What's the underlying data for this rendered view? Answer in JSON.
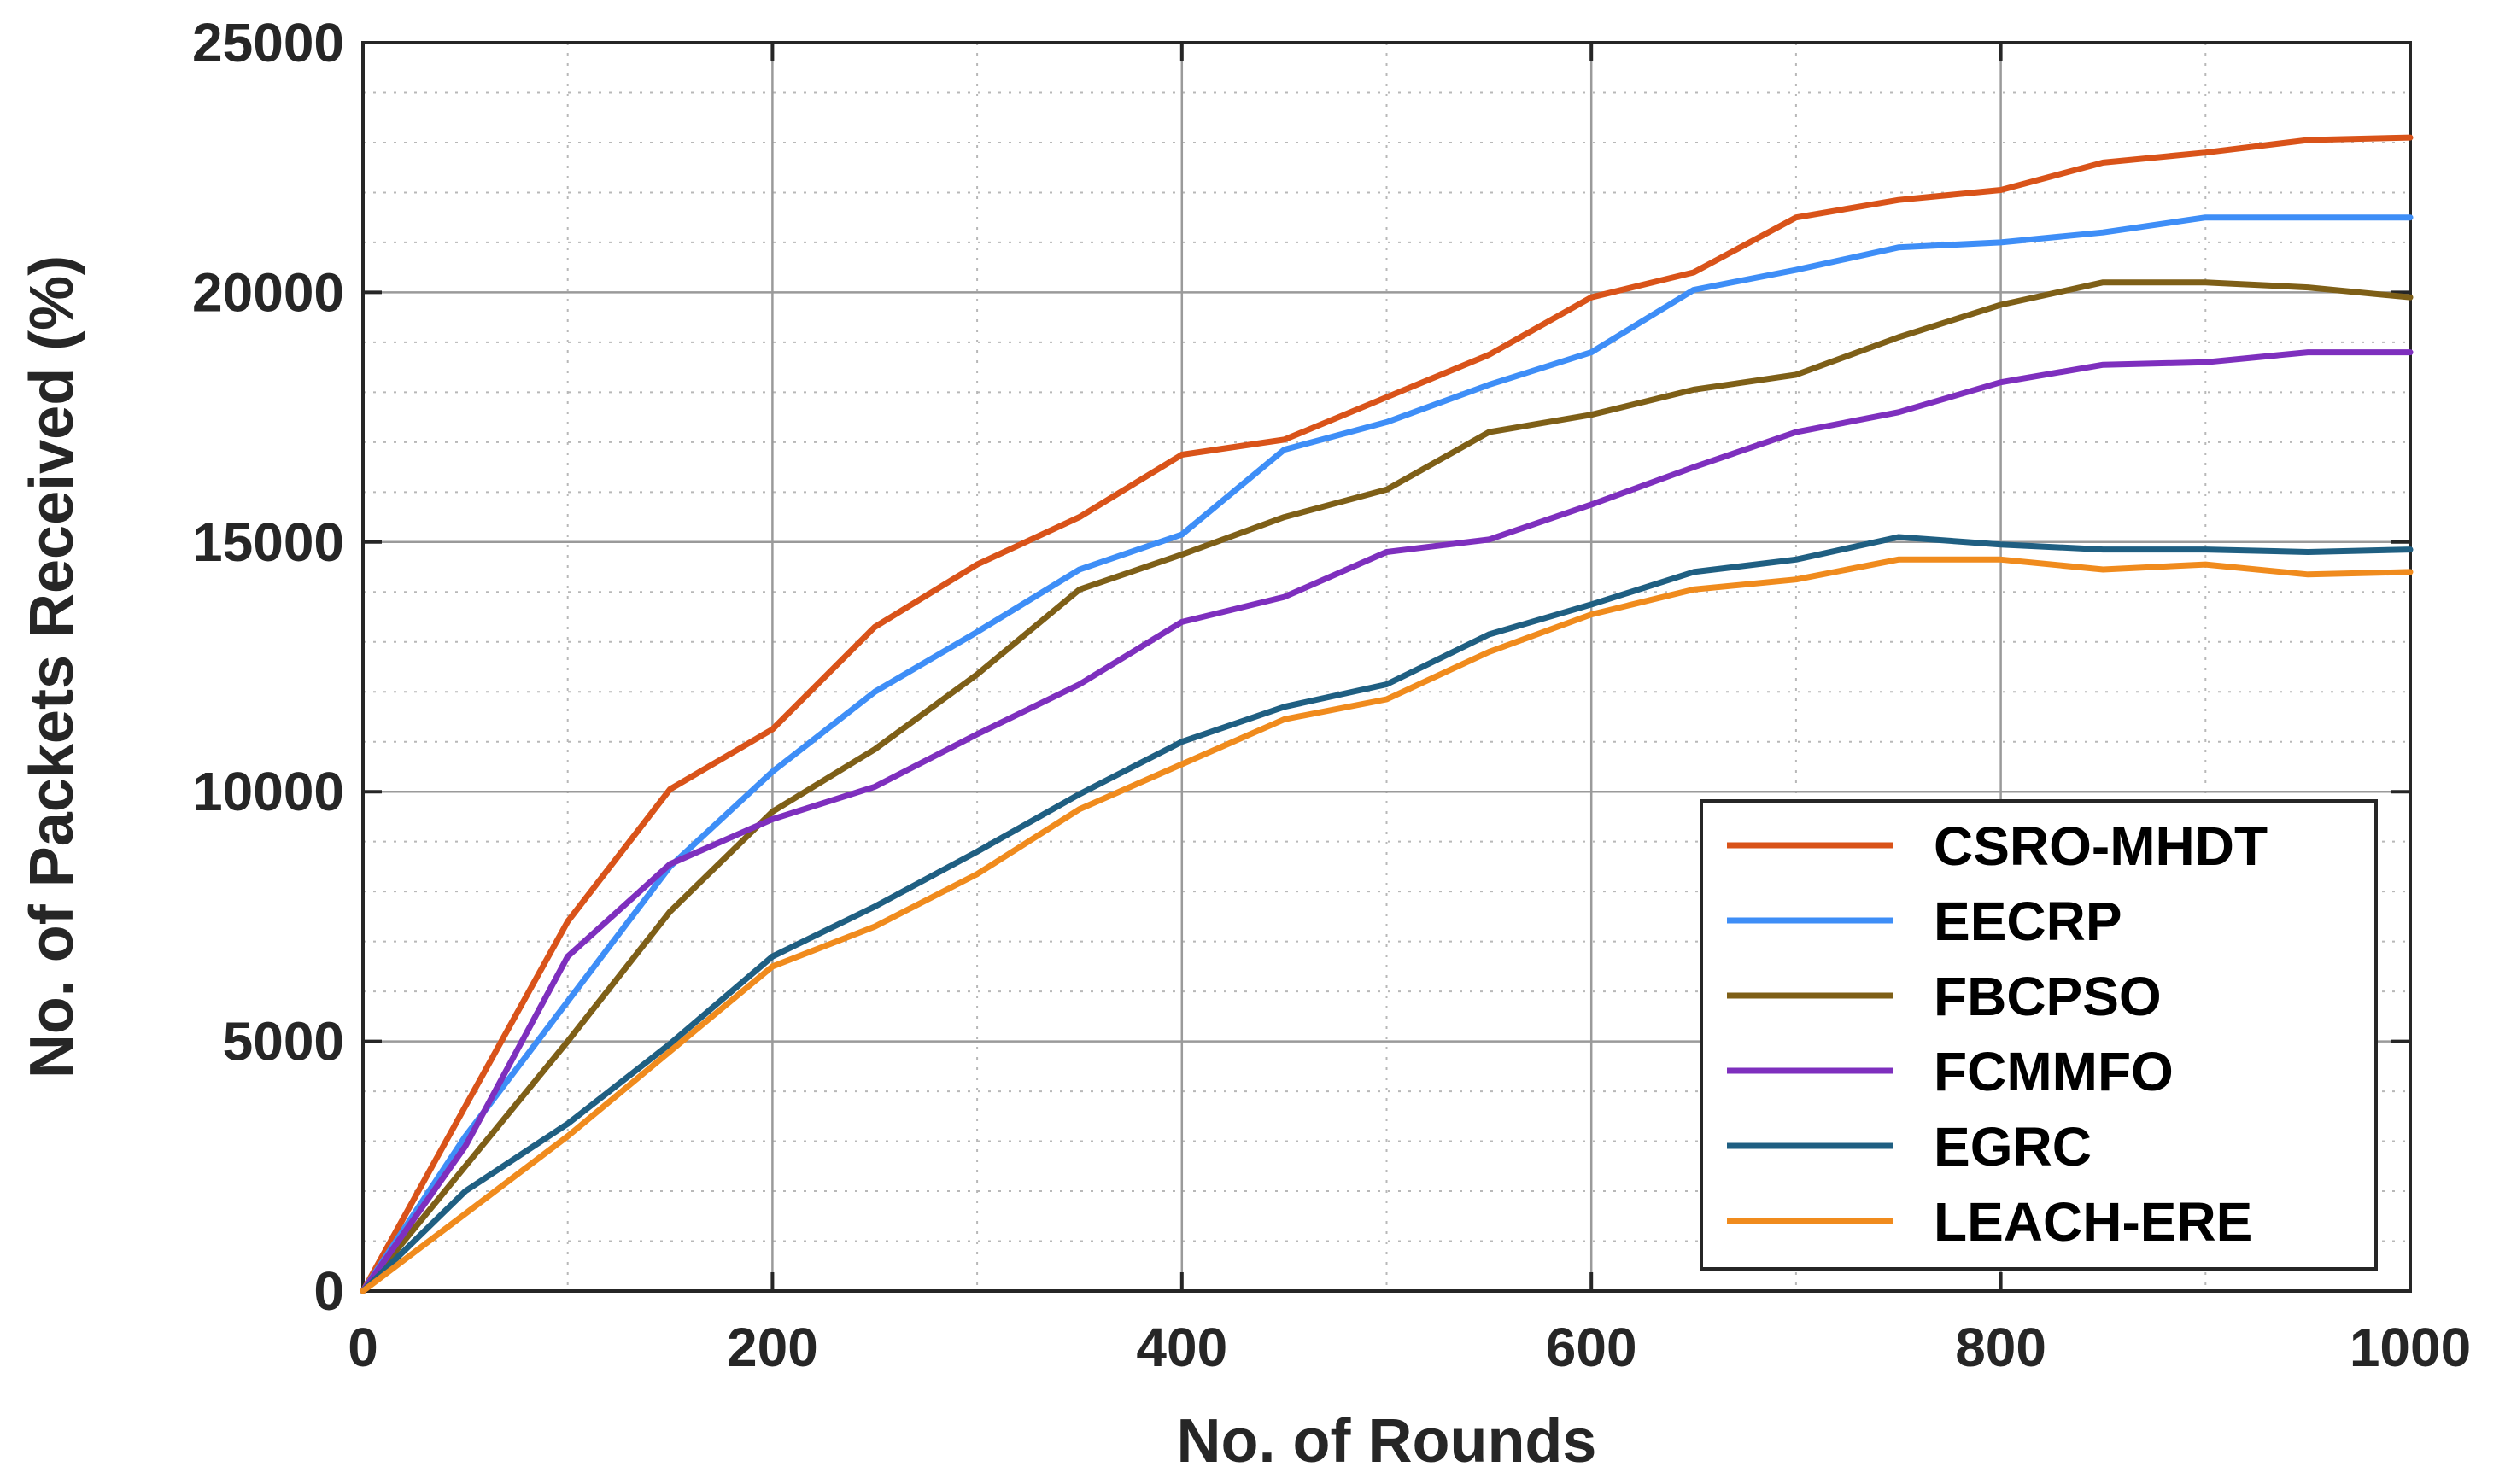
{
  "chart_data": {
    "type": "line",
    "title": "",
    "xlabel": "No. of Rounds",
    "ylabel": "No. of Packets Received (%)",
    "xlim": [
      0,
      1000
    ],
    "ylim": [
      0,
      25000
    ],
    "xticks": [
      0,
      200,
      400,
      600,
      800,
      1000
    ],
    "yticks": [
      0,
      5000,
      10000,
      15000,
      20000,
      25000
    ],
    "grid": true,
    "legend_position": "bottom-right",
    "x": [
      0,
      50,
      100,
      150,
      200,
      250,
      300,
      350,
      400,
      450,
      500,
      550,
      600,
      650,
      700,
      750,
      800,
      850,
      900,
      950,
      1000
    ],
    "series": [
      {
        "name": "CSRO-MHDT",
        "color": "#D95319",
        "values": [
          0,
          3700,
          7400,
          10050,
          11250,
          13300,
          14550,
          15500,
          16750,
          17050,
          17900,
          18750,
          19900,
          20400,
          21500,
          21850,
          22050,
          22600,
          22800,
          23050,
          23100
        ]
      },
      {
        "name": "EECRP",
        "color": "#3E8EF7",
        "values": [
          0,
          3100,
          5800,
          8500,
          10400,
          12000,
          13200,
          14450,
          15150,
          16850,
          17400,
          18150,
          18800,
          20050,
          20450,
          20900,
          21000,
          21200,
          21500,
          21500,
          21500
        ]
      },
      {
        "name": "FBCPSO",
        "color": "#7E5F17",
        "values": [
          0,
          2500,
          5000,
          7600,
          9600,
          10850,
          12350,
          14050,
          14750,
          15500,
          16050,
          17200,
          17550,
          18050,
          18350,
          19100,
          19750,
          20200,
          20200,
          20100,
          19900
        ]
      },
      {
        "name": "FCMMFO",
        "color": "#7E2FBE",
        "values": [
          0,
          2900,
          6700,
          8550,
          9450,
          10100,
          11150,
          12150,
          13400,
          13900,
          14800,
          15050,
          15750,
          16500,
          17200,
          17600,
          18200,
          18550,
          18600,
          18800,
          18800
        ]
      },
      {
        "name": "EGRC",
        "color": "#1F5F82",
        "values": [
          0,
          2000,
          3350,
          4950,
          6700,
          7700,
          8800,
          9950,
          11000,
          11700,
          12150,
          13150,
          13750,
          14400,
          14650,
          15100,
          14950,
          14850,
          14850,
          14800,
          14850
        ]
      },
      {
        "name": "LEACH-ERE",
        "color": "#F08B1D",
        "values": [
          0,
          1550,
          3100,
          4800,
          6500,
          7300,
          8350,
          9650,
          10550,
          11450,
          11850,
          12800,
          13550,
          14050,
          14250,
          14650,
          14650,
          14450,
          14550,
          14350,
          14400
        ]
      }
    ]
  }
}
